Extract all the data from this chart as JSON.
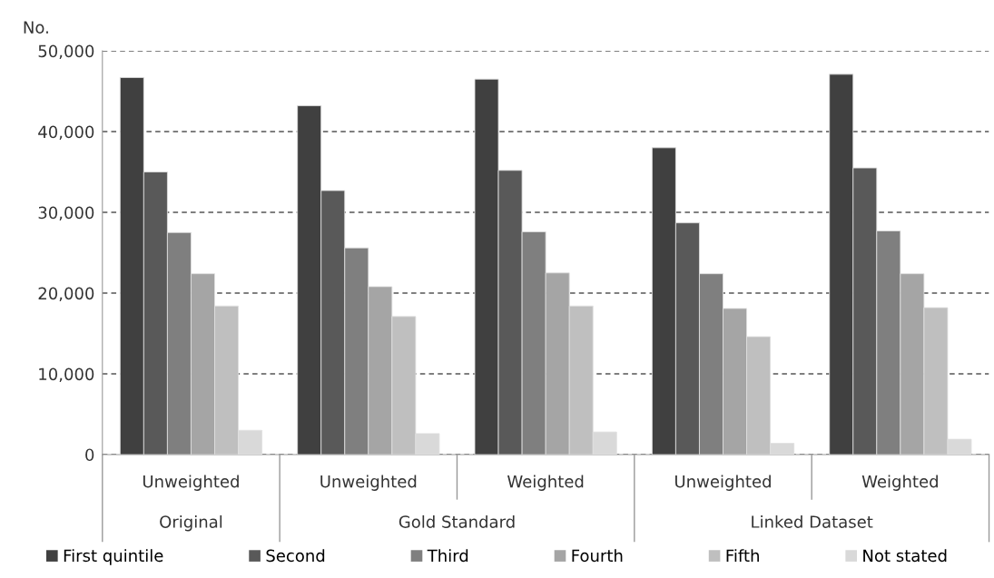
{
  "chart_data": {
    "type": "bar",
    "ylabel": "No.",
    "categories": [
      "Unweighted",
      "Unweighted",
      "Weighted",
      "Unweighted",
      "Weighted"
    ],
    "annotations": [
      "Original",
      "Gold Standard",
      "Linked Dataset"
    ],
    "series": [
      {
        "name": "First quintile",
        "color": "#404040",
        "values": [
          46700,
          43200,
          46500,
          38000,
          47100
        ]
      },
      {
        "name": "Second",
        "color": "#595959",
        "values": [
          35000,
          32700,
          35200,
          28700,
          35500
        ]
      },
      {
        "name": "Third",
        "color": "#7f7f7f",
        "values": [
          27500,
          25600,
          27600,
          22400,
          27700
        ]
      },
      {
        "name": "Fourth",
        "color": "#a5a5a5",
        "values": [
          22400,
          20800,
          22500,
          18100,
          22400
        ]
      },
      {
        "name": "Fifth",
        "color": "#bfbfbf",
        "values": [
          18400,
          17100,
          18400,
          14600,
          18200
        ]
      },
      {
        "name": "Not stated",
        "color": "#d9d9d9",
        "values": [
          3000,
          2600,
          2800,
          1400,
          1900
        ]
      }
    ],
    "ylim": [
      0,
      50000
    ],
    "yticks": [
      {
        "value": 0,
        "label": "0"
      },
      {
        "value": 10000,
        "label": "10,000"
      },
      {
        "value": 20000,
        "label": "20,000"
      },
      {
        "value": 30000,
        "label": "30,000"
      },
      {
        "value": 40000,
        "label": "40,000"
      },
      {
        "value": 50000,
        "label": "50,000"
      }
    ],
    "grid": "y",
    "legend": "bottom"
  }
}
